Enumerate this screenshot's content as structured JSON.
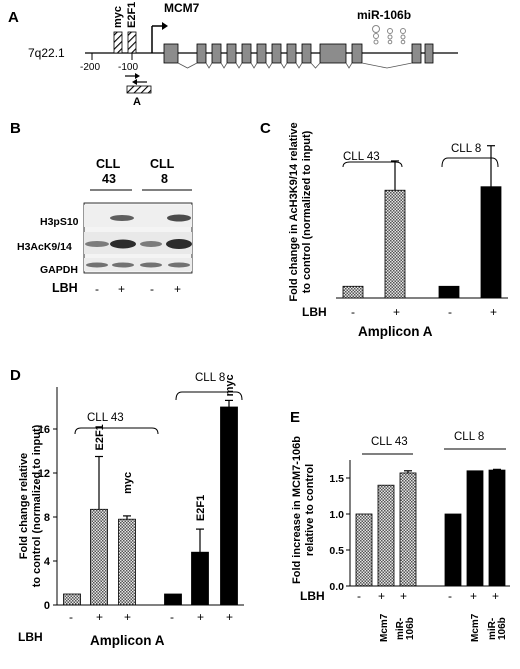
{
  "panelA": {
    "label": "A",
    "locus": "7q22.1",
    "myc": "myc",
    "e2f1": "E2F1",
    "mcm7": "MCM7",
    "mir": "miR-106b",
    "tick1": "-200",
    "tick2": "-100",
    "amplicon": "A"
  },
  "panelB": {
    "label": "B",
    "cll43": [
      "CLL",
      "43"
    ],
    "cll8": [
      "CLL",
      "8"
    ],
    "rows": [
      "H3pS10",
      "H3AcK9/14",
      "GAPDH"
    ],
    "lbh": "LBH",
    "treat": [
      "-",
      "+",
      "-",
      "+"
    ]
  },
  "panelC": {
    "label": "C",
    "ylabel": [
      "Fold change in AcH3K9/14 relative",
      "to control (normalized to input)"
    ],
    "xlabel": "Amplicon A",
    "lbh": "LBH",
    "treat": [
      "-",
      "+",
      "-",
      "+"
    ],
    "group1": "CLL 43",
    "group2": "CLL 8"
  },
  "panelD": {
    "label": "D",
    "ylabel": [
      "Fold change relative",
      "to control (normalized to input)"
    ],
    "xlabel": "Amplicon A",
    "lbh": "LBH",
    "treat": [
      "-",
      "+",
      "+",
      "-",
      "+",
      "+"
    ],
    "group1": "CLL 43",
    "group2": "CLL 8",
    "barlabels": [
      "E2F1",
      "myc",
      "E2F1",
      "myc"
    ]
  },
  "panelE": {
    "label": "E",
    "ylabel": [
      "Fold increase in MCM7-106b",
      "relative to control"
    ],
    "lbh": "LBH",
    "treat": [
      "-",
      "+",
      "+",
      "-",
      "+",
      "+"
    ],
    "group1": "CLL 43",
    "group2": "CLL 8",
    "xcat": [
      "Mcm7",
      "miR-",
      "106b",
      "Mcm7",
      "miR-",
      "106b"
    ]
  },
  "chart_data": [
    {
      "type": "bar",
      "panel": "C",
      "categories": [
        "CLL 43 -",
        "CLL 43 +",
        "CLL 8 -",
        "CLL 8 +"
      ],
      "values": [
        1.0,
        9.2,
        1.0,
        9.5
      ],
      "errors": [
        0,
        2.5,
        0,
        3.5
      ],
      "ylim": [
        0,
        14
      ]
    },
    {
      "type": "bar",
      "panel": "D",
      "categories": [
        "CLL 43 -",
        "CLL 43 + E2F1",
        "CLL 43 + myc",
        "CLL 8 -",
        "CLL 8 + E2F1",
        "CLL 8 + myc"
      ],
      "values": [
        1.0,
        8.7,
        7.8,
        1.0,
        4.8,
        18.0
      ],
      "errors": [
        0,
        4.8,
        0.3,
        0,
        2.1,
        0.6
      ],
      "yticks": [
        0,
        4,
        8,
        12,
        16
      ],
      "ylim": [
        0,
        20
      ]
    },
    {
      "type": "bar",
      "panel": "E",
      "categories": [
        "CLL 43 -",
        "CLL 43 Mcm7",
        "CLL 43 miR-106b",
        "CLL 8 -",
        "CLL 8 Mcm7",
        "CLL 8 miR-106b"
      ],
      "values": [
        1.0,
        1.4,
        1.57,
        1.0,
        1.6,
        1.61
      ],
      "errors": [
        0,
        0,
        0.03,
        0,
        0,
        0.01
      ],
      "yticks": [
        "0.0",
        "0.5",
        "1.0",
        "1.5"
      ],
      "ylim": [
        0,
        1.75
      ]
    }
  ]
}
